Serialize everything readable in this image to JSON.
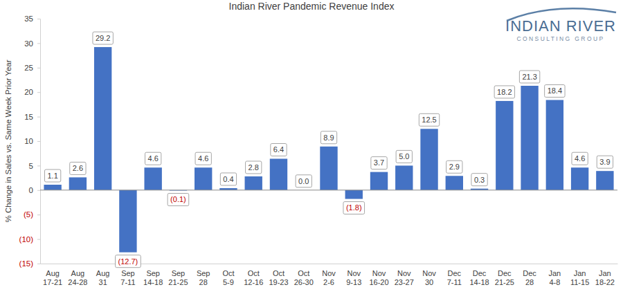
{
  "chart_data": {
    "type": "bar",
    "title": "Indian River Pandemic Revenue Index",
    "annotations": [
      "INDIAN RIVER",
      "CONSULTING GROUP"
    ],
    "y_label": "% Change in Sales vs. Same Week Prior Year",
    "categories": [
      "Aug 17-21",
      "Aug 24-28",
      "Aug 31",
      "Sep 7-11",
      "Sep 14-18",
      "Sep 21-25",
      "Sep 28",
      "Oct 5-9",
      "Oct 12-16",
      "Oct 19-23",
      "Oct 26-30",
      "Nov 2-6",
      "Nov 9-13",
      "Nov 16-20",
      "Nov 23-27",
      "Nov 30",
      "Dec 7-11",
      "Dec 14-18",
      "Dec 21-25",
      "Dec 28",
      "Jan 4-8",
      "Jan 11-15",
      "Jan 18-22"
    ],
    "values": [
      1.1,
      2.6,
      29.2,
      -12.7,
      4.6,
      -0.1,
      4.6,
      0.4,
      2.8,
      6.4,
      0.0,
      8.9,
      -1.8,
      3.7,
      5.0,
      12.5,
      2.9,
      0.3,
      18.2,
      21.3,
      18.4,
      4.6,
      3.9
    ],
    "value_labels": [
      "1.1",
      "2.6",
      "29.2",
      "(12.7)",
      "4.6",
      "(0.1)",
      "4.6",
      "0.4",
      "2.8",
      "6.4",
      "0.0",
      "8.9",
      "(1.8)",
      "3.7",
      "5.0",
      "12.5",
      "2.9",
      "0.3",
      "18.2",
      "21.3",
      "18.4",
      "4.6",
      "3.9"
    ],
    "color": "#4472c4",
    "ylim": [
      -15,
      35
    ],
    "yticks": [
      {
        "value": -15,
        "label": "(15)"
      },
      {
        "value": -10,
        "label": "(10)"
      },
      {
        "value": -5,
        "label": "(5)"
      },
      0,
      5,
      10,
      15,
      20,
      25,
      30,
      35
    ],
    "grid": false,
    "data_labels": true
  }
}
